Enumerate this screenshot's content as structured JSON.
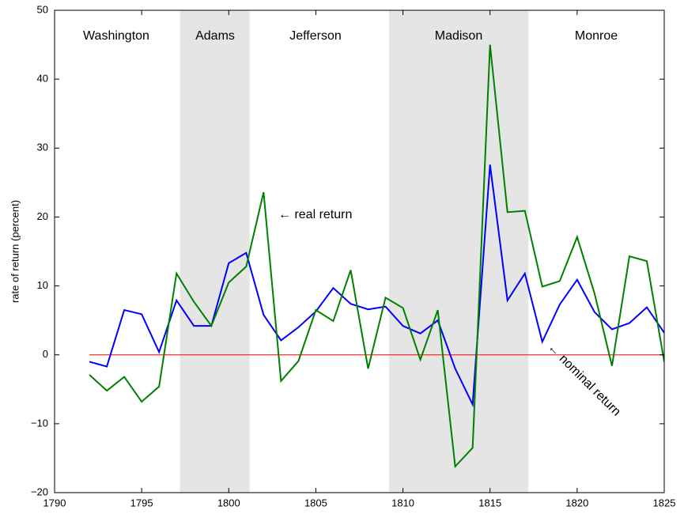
{
  "chart_data": {
    "type": "line",
    "y_label": "rate of return (percent)",
    "x": [
      1792,
      1793,
      1794,
      1795,
      1796,
      1797,
      1798,
      1799,
      1800,
      1801,
      1802,
      1803,
      1804,
      1805,
      1806,
      1807,
      1808,
      1809,
      1810,
      1811,
      1812,
      1813,
      1814,
      1815,
      1816,
      1817,
      1818,
      1819,
      1820,
      1821,
      1822,
      1823,
      1824,
      1825
    ],
    "series": [
      {
        "name": "nominal return",
        "color": "#0000ff",
        "values": [
          -1,
          -1.7,
          6.5,
          5.9,
          0.4,
          7.9,
          4.2,
          4.2,
          13.3,
          14.8,
          5.8,
          2.1,
          4,
          6.3,
          9.7,
          7.4,
          6.6,
          7,
          4.2,
          3.1,
          5,
          -2,
          -7.2,
          27.6,
          7.9,
          11.8,
          1.9,
          7.3,
          10.9,
          6.2,
          3.7,
          4.6,
          6.9,
          3.2
        ]
      },
      {
        "name": "real return",
        "color": "#008000",
        "values": [
          -2.9,
          -5.2,
          -3.2,
          -6.8,
          -4.6,
          11.8,
          7.7,
          4.2,
          10.5,
          12.8,
          23.6,
          -3.8,
          -0.9,
          6.5,
          4.9,
          12.3,
          -2,
          8.3,
          6.8,
          -0.7,
          6.5,
          -16.2,
          -13.5,
          45,
          20.7,
          20.9,
          9.9,
          10.7,
          17.1,
          8.9,
          -1.6,
          14.3,
          13.6,
          -1
        ]
      }
    ],
    "reference_line": 0,
    "reference_color": "#ff0000",
    "shaded_periods": [
      [
        1797.2,
        1801.2
      ],
      [
        1809.2,
        1817.2
      ]
    ],
    "shade_color": "#e5e5e5",
    "presidents": [
      "Washington",
      "Adams",
      "Jefferson",
      "Madison",
      "Monroe"
    ],
    "annotations": [
      "← real return",
      "← nominal return"
    ],
    "xlim": [
      1790,
      1825
    ],
    "xticks": [
      1790,
      1795,
      1800,
      1805,
      1810,
      1815,
      1820,
      1825
    ],
    "ylim": [
      -20,
      50
    ],
    "yticks": [
      {
        "value": -20,
        "label": "−20"
      },
      {
        "value": -10,
        "label": "−10"
      },
      0,
      10,
      20,
      30,
      40,
      50
    ]
  }
}
